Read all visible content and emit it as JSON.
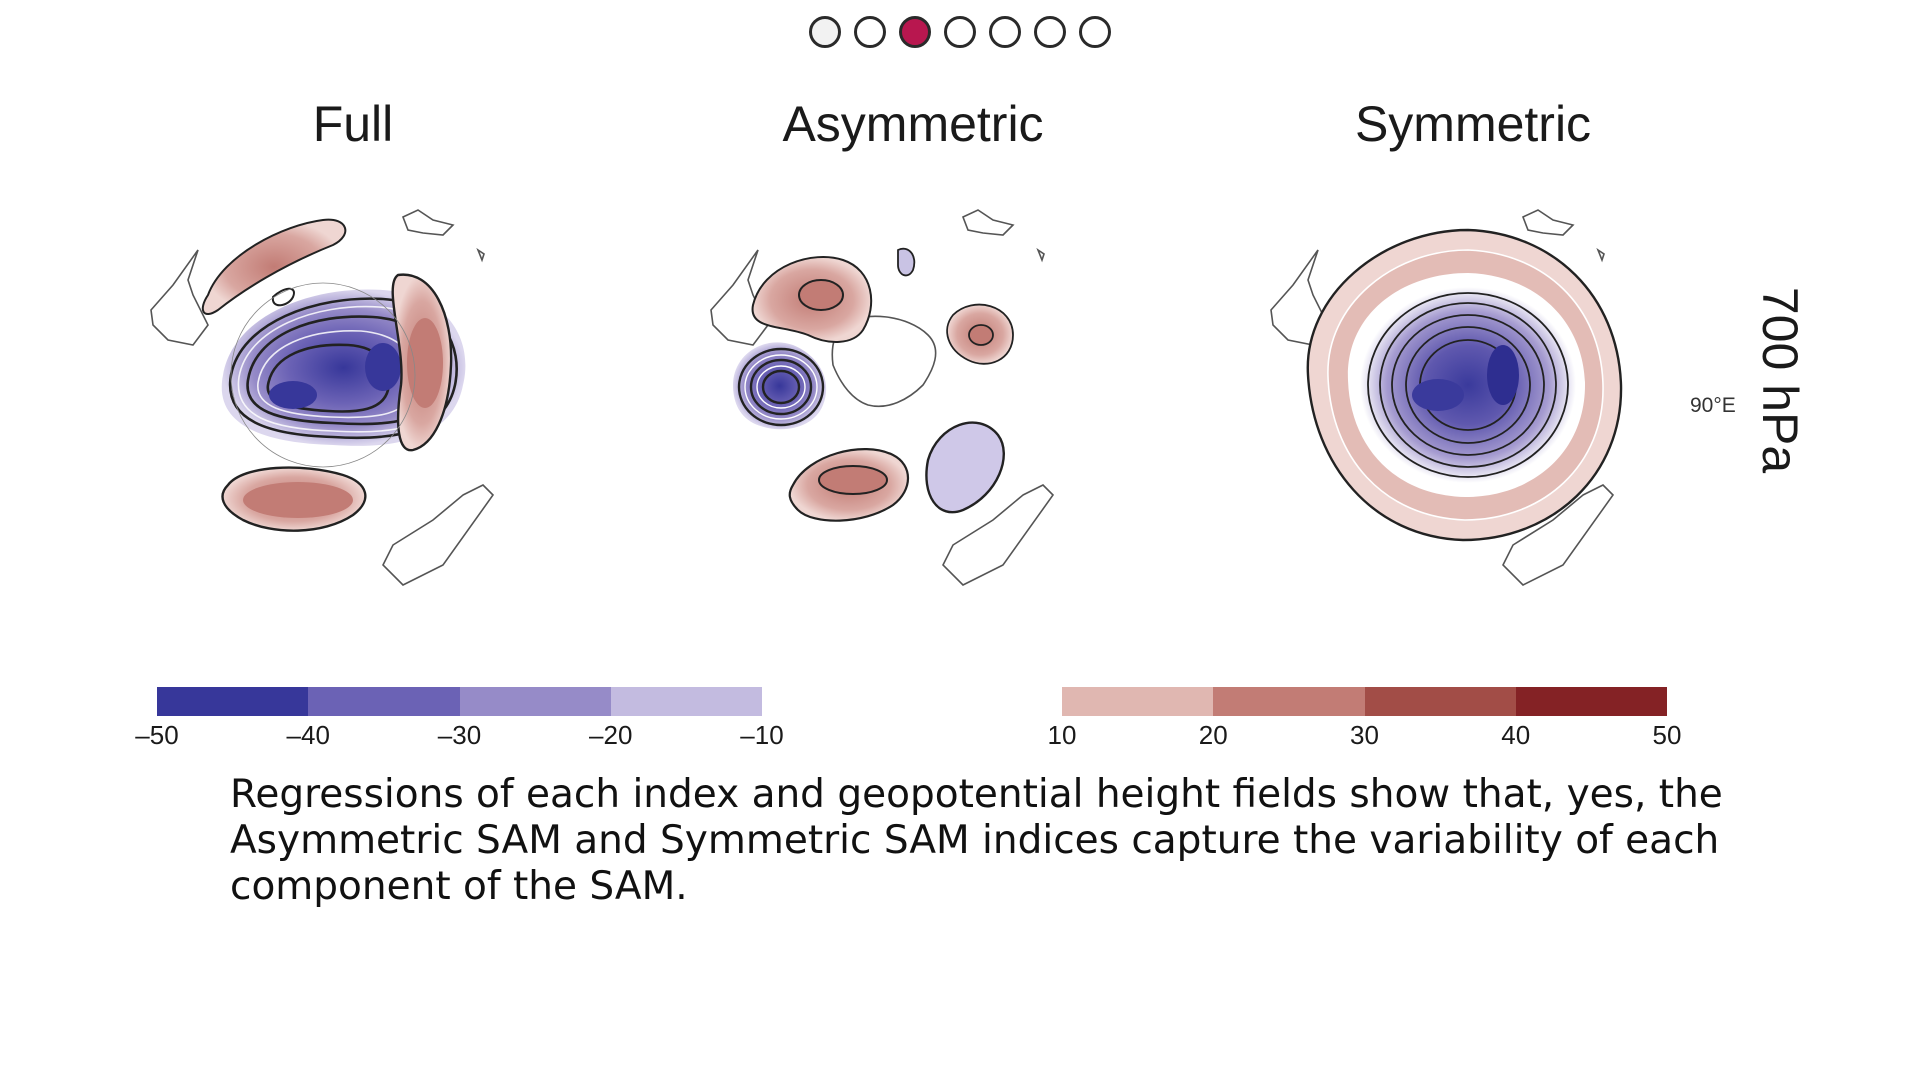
{
  "pagination": {
    "total": 7,
    "active_index": 2,
    "active_color": "#b8174f"
  },
  "panels": [
    {
      "title": "Full"
    },
    {
      "title": "Asymmetric"
    },
    {
      "title": "Symmetric"
    }
  ],
  "longitude_label": "90°E",
  "level_label": "700 hPa",
  "colorbars": {
    "negative": {
      "colors": [
        "#37379a",
        "#6b62b5",
        "#968bc8",
        "#c3bbe0"
      ],
      "ticks": [
        "–50",
        "–40",
        "–30",
        "–20",
        "–10"
      ]
    },
    "positive": {
      "colors": [
        "#e0b7b1",
        "#c27c75",
        "#a24d47",
        "#842225"
      ],
      "ticks": [
        "10",
        "20",
        "30",
        "40",
        "50"
      ]
    }
  },
  "caption": "Regressions of each index and geopotential height fields show that, yes, the Asymmetric SAM and Symmetric SAM indices capture the variability of each component of the SAM."
}
